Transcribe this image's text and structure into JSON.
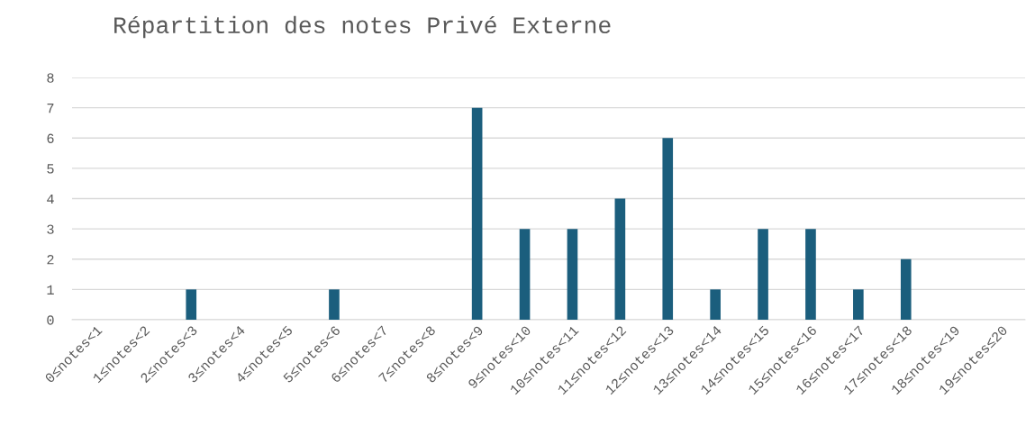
{
  "chart_data": {
    "type": "bar",
    "title": "Répartition des notes Privé Externe",
    "categories": [
      "0≤notes<1",
      "1≤notes<2",
      "2≤notes<3",
      "3≤notes<4",
      "4≤notes<5",
      "5≤notes<6",
      "6≤notes<7",
      "7≤notes<8",
      "8≤notes<9",
      "9≤notes<10",
      "10≤notes<11",
      "11≤notes<12",
      "12≤notes<13",
      "13≤notes<14",
      "14≤notes<15",
      "15≤notes<16",
      "16≤notes<17",
      "17≤notes<18",
      "18≤notes<19",
      "19≤notes≤20"
    ],
    "values": [
      0,
      0,
      1,
      0,
      0,
      1,
      0,
      0,
      7,
      3,
      3,
      4,
      6,
      1,
      3,
      3,
      1,
      2,
      0,
      0
    ],
    "color": "#1b5e7d",
    "ylim": [
      0,
      8
    ],
    "yticks": [
      0,
      1,
      2,
      3,
      4,
      5,
      6,
      7,
      8
    ],
    "grid": "y"
  }
}
